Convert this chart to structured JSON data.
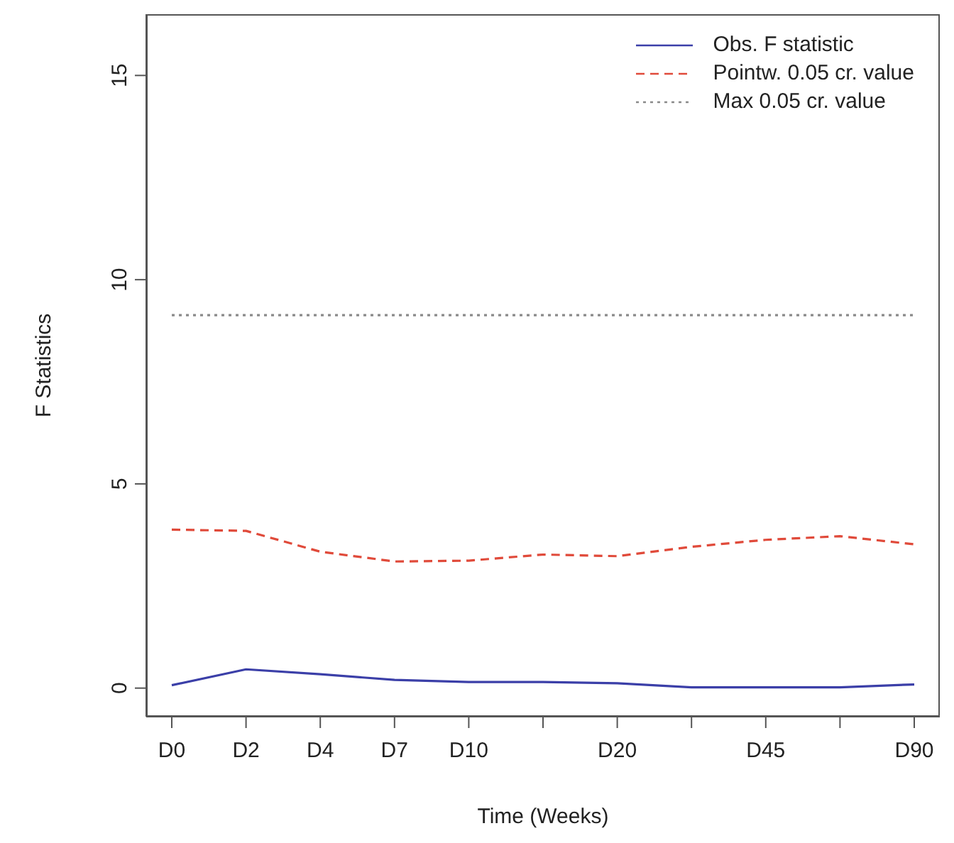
{
  "chart_data": {
    "type": "line",
    "xlabel": "Time (Weeks)",
    "ylabel": "F Statistics",
    "categories": [
      "D0",
      "D2",
      "D4",
      "D7",
      "D10",
      null,
      "D20",
      null,
      "D45",
      null,
      "D90"
    ],
    "ylim": [
      -0.7,
      16.5
    ],
    "yticks": [
      0,
      5,
      10,
      15
    ],
    "legend": "top right",
    "grid": false,
    "marker": "none",
    "series": [
      {
        "name": "Obs. F statistic",
        "color": "#3b3fa8",
        "line_style": "solid",
        "values": [
          0.07,
          0.46,
          0.34,
          0.2,
          0.15,
          0.15,
          0.12,
          0.02,
          0.02,
          0.02,
          0.09
        ]
      },
      {
        "name": "Pointw. 0.05 cr. value",
        "color": "#e04a3a",
        "line_style": "dashed",
        "values": [
          3.88,
          3.85,
          3.34,
          3.1,
          3.12,
          3.27,
          3.23,
          3.46,
          3.63,
          3.72,
          3.52
        ]
      },
      {
        "name": "Max 0.05 cr. value",
        "color": "#8a8a8a",
        "line_style": "dotted",
        "values": [
          9.13,
          9.13,
          9.13,
          9.13,
          9.13,
          9.13,
          9.13,
          9.13,
          9.13,
          9.13,
          9.13
        ]
      }
    ]
  }
}
